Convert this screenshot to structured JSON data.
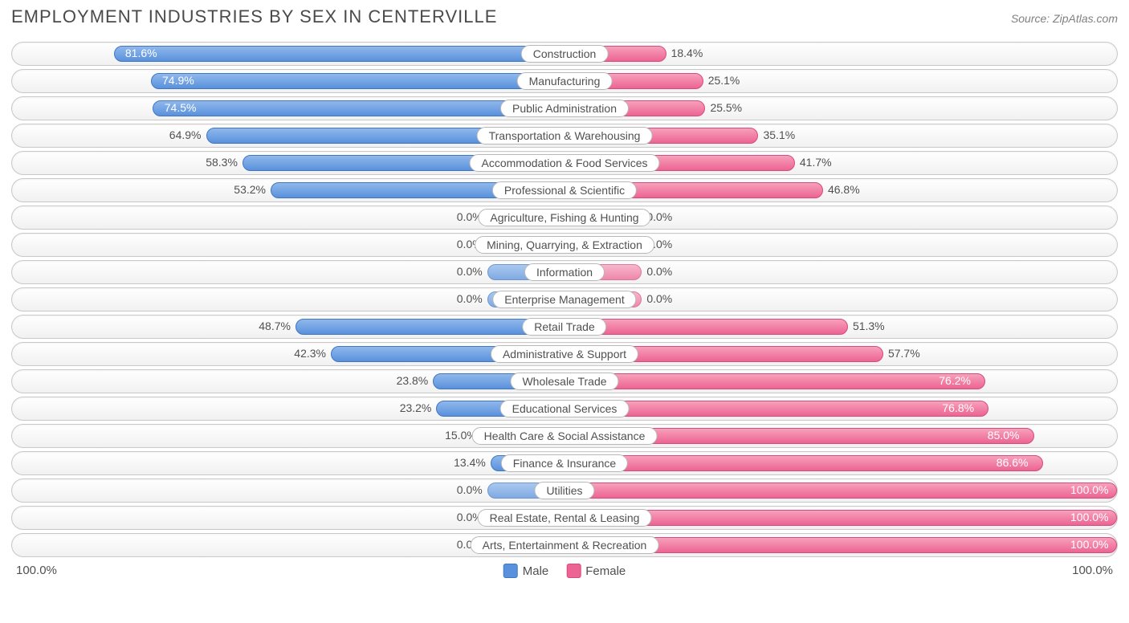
{
  "title": "EMPLOYMENT INDUSTRIES BY SEX IN CENTERVILLE",
  "source": "Source: ZipAtlas.com",
  "axis_left": "100.0%",
  "axis_right": "100.0%",
  "legend": {
    "male": "Male",
    "female": "Female"
  },
  "colors": {
    "male_light": "#8fb8ec",
    "male_dark": "#5a91dc",
    "male_border": "#3f77c5",
    "female_light": "#f7a0bb",
    "female_dark": "#ec6493",
    "female_border": "#d94a7d",
    "track_border": "#c8c8c8",
    "text": "#505050"
  },
  "min_bar_pct": 14,
  "rows": [
    {
      "label": "Construction",
      "male": 81.6,
      "female": 18.4,
      "male_txt": "81.6%",
      "female_txt": "18.4%"
    },
    {
      "label": "Manufacturing",
      "male": 74.9,
      "female": 25.1,
      "male_txt": "74.9%",
      "female_txt": "25.1%"
    },
    {
      "label": "Public Administration",
      "male": 74.5,
      "female": 25.5,
      "male_txt": "74.5%",
      "female_txt": "25.5%"
    },
    {
      "label": "Transportation & Warehousing",
      "male": 64.9,
      "female": 35.1,
      "male_txt": "64.9%",
      "female_txt": "35.1%"
    },
    {
      "label": "Accommodation & Food Services",
      "male": 58.3,
      "female": 41.7,
      "male_txt": "58.3%",
      "female_txt": "41.7%"
    },
    {
      "label": "Professional & Scientific",
      "male": 53.2,
      "female": 46.8,
      "male_txt": "53.2%",
      "female_txt": "46.8%"
    },
    {
      "label": "Agriculture, Fishing & Hunting",
      "male": 0.0,
      "female": 0.0,
      "male_txt": "0.0%",
      "female_txt": "0.0%"
    },
    {
      "label": "Mining, Quarrying, & Extraction",
      "male": 0.0,
      "female": 0.0,
      "male_txt": "0.0%",
      "female_txt": "0.0%"
    },
    {
      "label": "Information",
      "male": 0.0,
      "female": 0.0,
      "male_txt": "0.0%",
      "female_txt": "0.0%"
    },
    {
      "label": "Enterprise Management",
      "male": 0.0,
      "female": 0.0,
      "male_txt": "0.0%",
      "female_txt": "0.0%"
    },
    {
      "label": "Retail Trade",
      "male": 48.7,
      "female": 51.3,
      "male_txt": "48.7%",
      "female_txt": "51.3%"
    },
    {
      "label": "Administrative & Support",
      "male": 42.3,
      "female": 57.7,
      "male_txt": "42.3%",
      "female_txt": "57.7%"
    },
    {
      "label": "Wholesale Trade",
      "male": 23.8,
      "female": 76.2,
      "male_txt": "23.8%",
      "female_txt": "76.2%"
    },
    {
      "label": "Educational Services",
      "male": 23.2,
      "female": 76.8,
      "male_txt": "23.2%",
      "female_txt": "76.8%"
    },
    {
      "label": "Health Care & Social Assistance",
      "male": 15.0,
      "female": 85.0,
      "male_txt": "15.0%",
      "female_txt": "85.0%"
    },
    {
      "label": "Finance & Insurance",
      "male": 13.4,
      "female": 86.6,
      "male_txt": "13.4%",
      "female_txt": "86.6%"
    },
    {
      "label": "Utilities",
      "male": 0.0,
      "female": 100.0,
      "male_txt": "0.0%",
      "female_txt": "100.0%"
    },
    {
      "label": "Real Estate, Rental & Leasing",
      "male": 0.0,
      "female": 100.0,
      "male_txt": "0.0%",
      "female_txt": "100.0%"
    },
    {
      "label": "Arts, Entertainment & Recreation",
      "male": 0.0,
      "female": 100.0,
      "male_txt": "0.0%",
      "female_txt": "100.0%"
    }
  ]
}
